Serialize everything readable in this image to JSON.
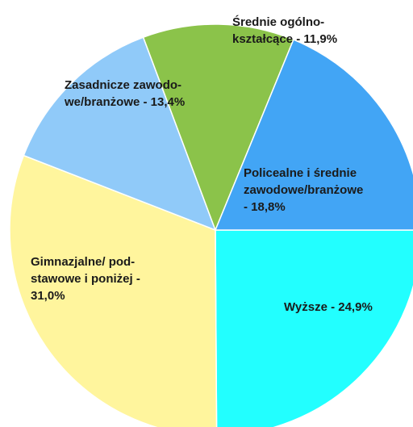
{
  "chart_data": {
    "type": "pie",
    "values": [
      24.9,
      31.0,
      13.4,
      11.9,
      18.8
    ],
    "value_labels": [
      [
        "Wyższe - 24,9%"
      ],
      [
        "Gimnazjalne/ pod-",
        "stawowe i poniżej -",
        "31,0%"
      ],
      [
        "Zasadnicze zawodo-",
        "we/branżowe - 13,4%"
      ],
      [
        "Średnie ogólno-",
        "kształcące - 11,9%"
      ],
      [
        "Policealne i średnie",
        "zawodowe/branżowe",
        "- 18,8%"
      ]
    ],
    "colors": [
      "#22ffff",
      "#fff59d",
      "#90caf9",
      "#8bc34a",
      "#42a5f5"
    ]
  }
}
